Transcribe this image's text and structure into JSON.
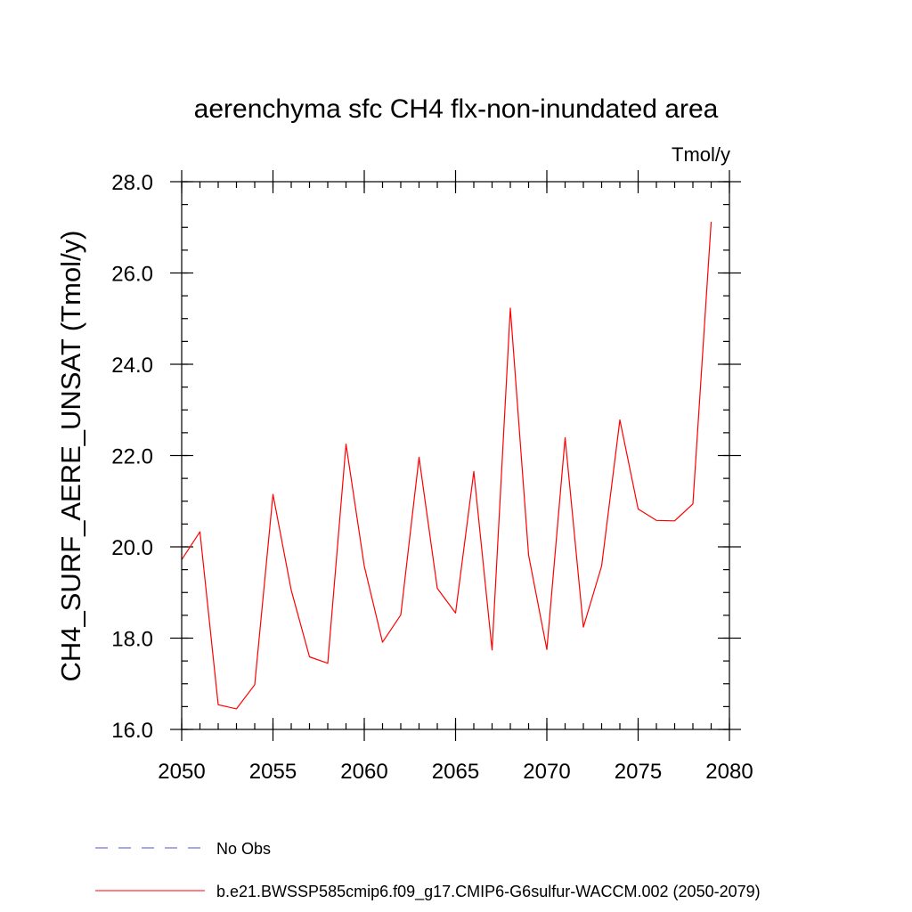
{
  "chart_data": {
    "type": "line",
    "title": "aerenchyma sfc CH4 flx-non-inundated area",
    "units": "Tmol/y",
    "ylabel": "CH4_SURF_AERE_UNSAT  (Tmol/y)",
    "xlabel": "",
    "xlim": [
      2050,
      2080
    ],
    "ylim": [
      16.0,
      28.0
    ],
    "x_ticks": [
      {
        "value": 2050,
        "label": "2050"
      },
      {
        "value": 2055,
        "label": "2055"
      },
      {
        "value": 2060,
        "label": "2060"
      },
      {
        "value": 2065,
        "label": "2065"
      },
      {
        "value": 2070,
        "label": "2070"
      },
      {
        "value": 2075,
        "label": "2075"
      },
      {
        "value": 2080,
        "label": "2080"
      }
    ],
    "y_ticks": [
      {
        "value": 16.0,
        "label": "16.0"
      },
      {
        "value": 18.0,
        "label": "18.0"
      },
      {
        "value": 20.0,
        "label": "20.0"
      },
      {
        "value": 22.0,
        "label": "22.0"
      },
      {
        "value": 24.0,
        "label": "24.0"
      },
      {
        "value": 26.0,
        "label": "26.0"
      },
      {
        "value": 28.0,
        "label": "28.0"
      }
    ],
    "x_minor_step": 1,
    "y_minor_step": 0.5,
    "grid": false,
    "legend_position": "bottom",
    "series": [
      {
        "name": "b.e21.BWSSP585cmip6.f09_g17.CMIP6-G6sulfur-WACCM.002 (2050-2079)",
        "color": "#ff0000",
        "style": "solid",
        "x": [
          2050,
          2051,
          2052,
          2053,
          2054,
          2055,
          2056,
          2057,
          2058,
          2059,
          2060,
          2061,
          2062,
          2063,
          2064,
          2065,
          2066,
          2067,
          2068,
          2069,
          2070,
          2071,
          2072,
          2073,
          2074,
          2075,
          2076,
          2077,
          2078,
          2079
        ],
        "values": [
          19.72,
          20.33,
          16.54,
          16.45,
          16.98,
          21.15,
          19.05,
          17.59,
          17.45,
          22.25,
          19.58,
          17.91,
          18.51,
          21.96,
          19.09,
          18.55,
          21.65,
          17.74,
          25.23,
          19.82,
          17.75,
          22.39,
          18.24,
          19.58,
          22.78,
          20.83,
          20.58,
          20.57,
          20.94,
          27.12
        ]
      }
    ],
    "legend": [
      {
        "label": "No Obs",
        "color": "#5050c8",
        "style": "dashed"
      },
      {
        "label": "b.e21.BWSSP585cmip6.f09_g17.CMIP6-G6sulfur-WACCM.002 (2050-2079)",
        "color": "#ff0000",
        "style": "solid"
      }
    ]
  }
}
